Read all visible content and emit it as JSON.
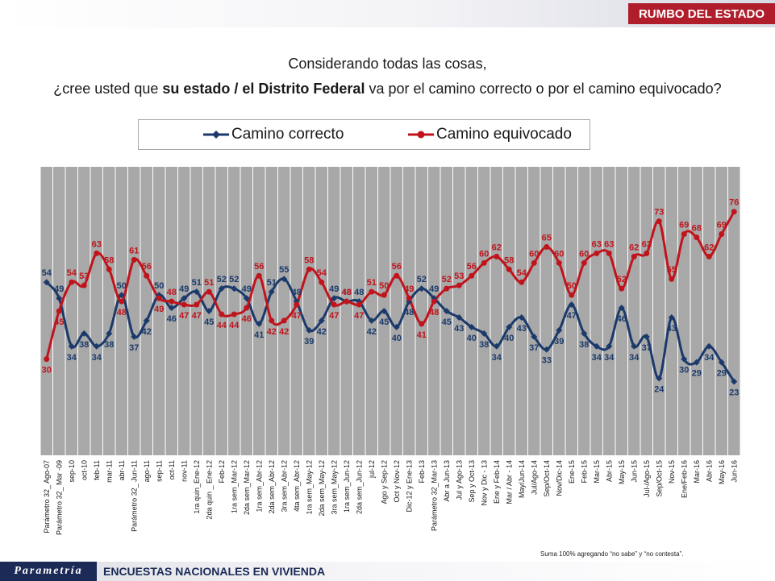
{
  "header": {
    "section": "RUMBO DEL ESTADO"
  },
  "question": {
    "line1": "Considerando todas las cosas,",
    "line2_pre": "¿cree usted que ",
    "line2_bold": "su estado / el Distrito Federal",
    "line2_post": " va por el camino correcto o por el camino equivocado?"
  },
  "legend": {
    "correcto": "Camino correcto",
    "equivocado": "Camino equivocado"
  },
  "footnote": "Suma 100% agregando “no sabe” y “no contesta”.",
  "footer": {
    "logo": "Parametría",
    "label": "ENCUESTAS NACIONALES EN VIVIENDA"
  },
  "colors": {
    "correcto": "#1b3a6b",
    "equivocado": "#c0141c",
    "plot_bg": "#a8a8a8",
    "grid": "#ffffff"
  },
  "chart_data": {
    "type": "line",
    "ylim": [
      0,
      90
    ],
    "categories": [
      "Parámetro 32_ Ago-07",
      "Parámetro 32_ Mar -09",
      "sep-10",
      "oct-10",
      "feb-11",
      "mar-11",
      "abr-11",
      "Parámetro 32_ Jun-11",
      "ago-11",
      "sep-11",
      "oct-11",
      "nov-11",
      "1ra quin_Ene-12",
      "2da quin _ Ene-12",
      "Feb-12",
      "1ra sem_Mar-12",
      "2da sem_Mar-12",
      "1ra sem_Abr-12",
      "2da sem_Abr-12",
      "3ra sem_Abr-12",
      "4ta sem_Abr-12",
      "1ra sem_May-12",
      "2da sem_May-12",
      "3ra sem_May-12",
      "1ra sem_Jun-12",
      "2da sem_Jun-12",
      "jul-12",
      "Ago y Sep-12",
      "Oct y Nov-12",
      "Dic-12 y Ene-13",
      "Feb-13",
      "Parámetro 32_Mar-13",
      "Abr a Jun-13",
      "Jul y Ago-13",
      "Sep y Oct-13",
      "Nov y Dic - 13",
      "Ene y Feb-14",
      "Mar / Abr - 14",
      "May/Jun-14",
      "Jul/Ago-14",
      "Sep/Oct-14",
      "Nov/Dic-14",
      "Ene-15",
      "Feb-15",
      "Mar-15",
      "Abr-15",
      "May-15",
      "Jun-15",
      "Jul-/Ago-15",
      "Sep/Oct-15",
      "Nov-15",
      "Ene/Feb-16",
      "Mar-16",
      "Abr-16",
      "May-16",
      "Jun-16"
    ],
    "series": [
      {
        "name": "Camino correcto",
        "values": [
          54,
          49,
          34,
          38,
          34,
          38,
          50,
          37,
          42,
          50,
          46,
          49,
          51,
          45,
          52,
          52,
          49,
          41,
          51,
          55,
          48,
          39,
          42,
          49,
          48,
          48,
          42,
          45,
          40,
          48,
          52,
          49,
          45,
          43,
          40,
          38,
          34,
          40,
          43,
          37,
          33,
          39,
          47,
          38,
          34,
          34,
          46,
          34,
          37,
          24,
          43,
          30,
          29,
          34,
          29,
          23
        ]
      },
      {
        "name": "Camino equivocado",
        "values": [
          30,
          45,
          54,
          53,
          63,
          58,
          48,
          61,
          56,
          49,
          48,
          47,
          47,
          51,
          44,
          44,
          46,
          56,
          42,
          42,
          47,
          58,
          54,
          47,
          48,
          47,
          51,
          50,
          56,
          49,
          41,
          48,
          52,
          53,
          56,
          60,
          62,
          58,
          54,
          60,
          65,
          60,
          50,
          60,
          63,
          63,
          52,
          62,
          63,
          73,
          55,
          69,
          68,
          62,
          69,
          76
        ]
      }
    ]
  }
}
